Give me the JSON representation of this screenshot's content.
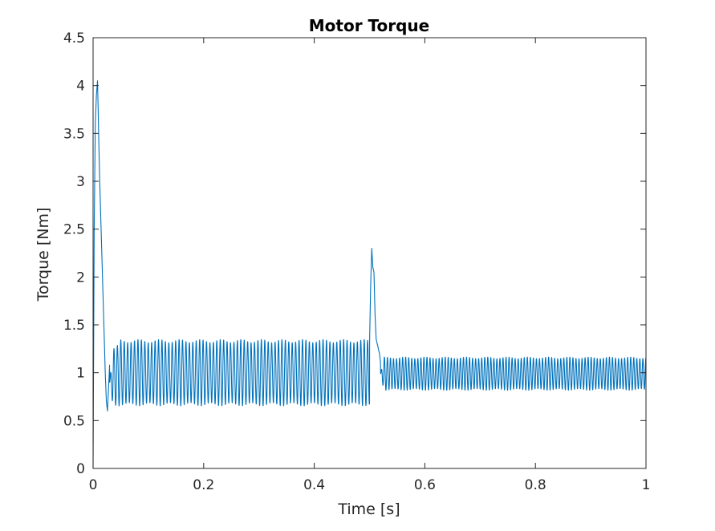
{
  "chart_data": {
    "type": "line",
    "title": "Motor Torque",
    "xlabel": "Time [s]",
    "ylabel": "Torque [Nm]",
    "xlim": [
      0,
      1
    ],
    "ylim": [
      0,
      4.5
    ],
    "xticks": [
      0,
      0.2,
      0.4,
      0.6,
      0.8,
      1
    ],
    "xtick_labels": [
      "0",
      "0.2",
      "0.4",
      "0.6",
      "0.8",
      "1"
    ],
    "yticks": [
      0,
      0.5,
      1,
      1.5,
      2,
      2.5,
      3,
      3.5,
      4,
      4.5
    ],
    "ytick_labels": [
      "0",
      "0.5",
      "1",
      "1.5",
      "2",
      "2.5",
      "3",
      "3.5",
      "4",
      "4.5"
    ],
    "grid": false,
    "box": true,
    "series": [
      {
        "color": "#0072bd",
        "x": [
          0,
          0.002,
          0.004,
          0.006,
          0.008,
          0.009,
          0.01,
          0.012,
          0.014,
          0.016,
          0.018,
          0.02,
          0.022,
          0.024,
          0.026,
          0.028,
          0.03,
          0.035,
          0.04,
          0.1,
          0.2,
          0.3,
          0.4,
          0.499,
          0.5,
          0.502,
          0.504,
          0.506,
          0.508,
          0.51,
          0.512,
          0.514,
          0.516,
          0.518,
          0.52,
          0.53,
          0.55,
          0.6,
          0.7,
          0.8,
          0.9,
          1.0
        ],
        "y": [
          0,
          2.5,
          3.6,
          3.9,
          4.05,
          3.8,
          3.5,
          3.0,
          2.6,
          2.2,
          1.8,
          1.4,
          1.0,
          0.7,
          0.6,
          0.85,
          1.1,
          0.9,
          1.0,
          1.0,
          1.0,
          1.0,
          1.0,
          1.0,
          1.3,
          1.9,
          2.3,
          2.1,
          2.05,
          1.6,
          1.35,
          1.3,
          1.25,
          1.2,
          1.1,
          1.0,
          1.0,
          1.0,
          1.0,
          1.0,
          1.0,
          1.0
        ],
        "oscillation": {
          "description": "Steady-state ripple around the mean",
          "segments": [
            {
              "x_start": 0.03,
              "x_end": 0.5,
              "mean": 1.0,
              "amplitude": 0.33,
              "period": 0.0062
            },
            {
              "x_start": 0.52,
              "x_end": 1.0,
              "mean": 0.99,
              "amplitude": 0.165,
              "period": 0.0055
            }
          ]
        }
      }
    ]
  }
}
